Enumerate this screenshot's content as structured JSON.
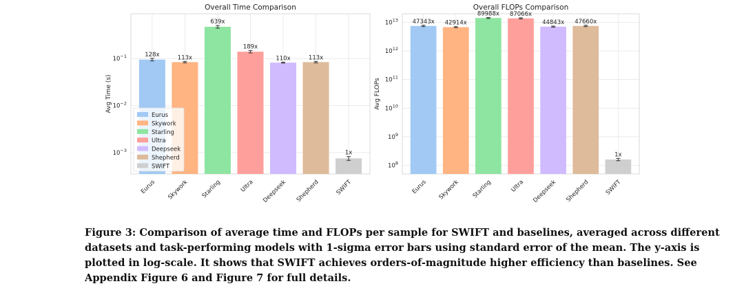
{
  "chart_data": [
    {
      "type": "bar",
      "title": "Overall Time Comparison",
      "xlabel": "",
      "ylabel": "Avg Time (s)",
      "yscale": "log",
      "ylim": [
        0.00035,
        0.9
      ],
      "yticks": [
        {
          "value": 0.001,
          "base": "10",
          "exp": "−3"
        },
        {
          "value": 0.01,
          "base": "10",
          "exp": "−2"
        },
        {
          "value": 0.1,
          "base": "10",
          "exp": "−1"
        }
      ],
      "categories": [
        "Eurus",
        "Skywork",
        "Starling",
        "Ultra",
        "Deepseek",
        "Shepherd",
        "SWIFT"
      ],
      "values": [
        0.095,
        0.084,
        0.475,
        0.14,
        0.082,
        0.084,
        0.00075
      ],
      "errors": [
        0.006,
        0.003,
        0.03,
        0.008,
        0.002,
        0.003,
        7e-05
      ],
      "labels": [
        "128x",
        "113x",
        "639x",
        "189x",
        "110x",
        "113x",
        "1x"
      ],
      "legend": {
        "position": "lower-left",
        "entries": [
          "Eurus",
          "Skywork",
          "Starling",
          "Ultra",
          "Deepseek",
          "Shepherd",
          "SWIFT"
        ]
      },
      "grid": true
    },
    {
      "type": "bar",
      "title": "Overall FLOPs Comparison",
      "xlabel": "",
      "ylabel": "Avg FLOPs",
      "yscale": "log",
      "ylim": [
        50000000,
        20000000000000
      ],
      "yticks": [
        {
          "value": 100000000,
          "base": "10",
          "exp": "8"
        },
        {
          "value": 1000000000,
          "base": "10",
          "exp": "9"
        },
        {
          "value": 10000000000,
          "base": "10",
          "exp": "10"
        },
        {
          "value": 100000000000,
          "base": "10",
          "exp": "11"
        },
        {
          "value": 1000000000000,
          "base": "10",
          "exp": "12"
        },
        {
          "value": 10000000000000,
          "base": "10",
          "exp": "13"
        }
      ],
      "categories": [
        "Eurus",
        "Skywork",
        "Starling",
        "Ultra",
        "Deepseek",
        "Shepherd",
        "SWIFT"
      ],
      "values": [
        7500000000000,
        6800000000000,
        14200000000000,
        13800000000000,
        7100000000000,
        7500000000000,
        160000000
      ],
      "errors": [
        400000000000,
        300000000000,
        500000000000,
        600000000000,
        300000000000,
        400000000000,
        15000000
      ],
      "labels": [
        "47343x",
        "42914x",
        "89988x",
        "87066x",
        "44843x",
        "47660x",
        "1x"
      ],
      "grid": true
    }
  ],
  "colors": [
    "#a1c9f4",
    "#ffb482",
    "#8de5a1",
    "#ff9f9b",
    "#d0bbff",
    "#debb9b",
    "#cfcfcf"
  ],
  "caption": "Figure 3: Comparison of average time and FLOPs per sample for SWIFT and baselines, averaged across different datasets and task-performing models with 1-sigma error bars using standard error of the mean. The y-axis is plotted in log-scale. It shows that SWIFT achieves orders-of-magnitude higher efficiency than baselines. See Appendix Figure 6 and Figure 7 for full details."
}
